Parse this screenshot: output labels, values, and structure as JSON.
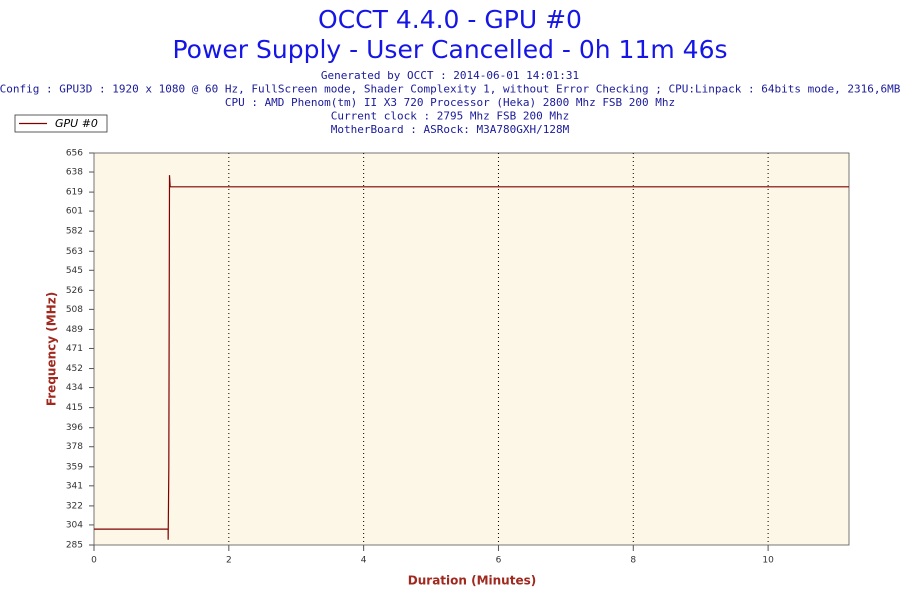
{
  "chart_data": {
    "type": "line",
    "title": "OCCT 4.4.0 - GPU #0",
    "subtitle": "Power Supply - User Cancelled - 0h 11m 46s",
    "info": [
      "Generated by OCCT : 2014-06-01 14:01:31",
      "Config : GPU3D : 1920 x 1080 @ 60 Hz, FullScreen mode, Shader Complexity 1, without Error Checking ; CPU:Linpack : 64bits mode, 2316,6MB",
      "CPU : AMD Phenom(tm) II X3 720 Processor (Heka) 2800 Mhz FSB 200 Mhz",
      "Current clock : 2795 Mhz FSB 200 Mhz",
      "MotherBoard : ASRock: M3A780GXH/128M"
    ],
    "x_label": "Duration (Minutes)",
    "y_label": "Frequency (MHz)",
    "x": [
      0,
      1.1,
      1.1,
      1.11,
      1.12,
      1.13,
      11.2
    ],
    "series": [
      {
        "name": "GPU #0",
        "color": "#800000",
        "values": [
          300,
          300,
          290,
          359,
          635,
          624,
          624
        ]
      }
    ],
    "xlim": [
      0,
      11.2
    ],
    "ylim": [
      285,
      656
    ],
    "xticks": [
      0,
      2,
      4,
      6,
      8,
      10
    ],
    "yticks": [
      285,
      304,
      322,
      341,
      359,
      378,
      396,
      415,
      434,
      452,
      471,
      489,
      508,
      526,
      545,
      563,
      582,
      601,
      619,
      638,
      656
    ],
    "grid": "x",
    "legend": "top-left"
  }
}
